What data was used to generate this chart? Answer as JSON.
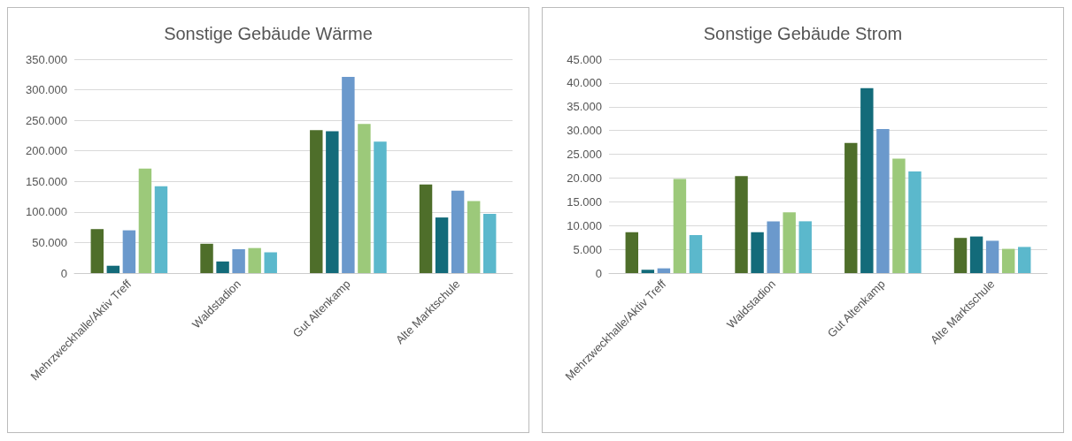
{
  "chart_data": [
    {
      "type": "bar",
      "title": "Sonstige Gebäude Wärme",
      "categories": [
        "Mehrzweckhalle/Aktiv Treff",
        "Waldstadion",
        "Gut Altenkamp",
        "Alte Marktschule"
      ],
      "series": [
        {
          "color": "#4e6e2a",
          "values": [
            72000,
            48000,
            234000,
            145000
          ]
        },
        {
          "color": "#136b7a",
          "values": [
            12000,
            19000,
            232000,
            91000
          ]
        },
        {
          "color": "#6b99cc",
          "values": [
            70000,
            39000,
            321000,
            135000
          ]
        },
        {
          "color": "#9cc97a",
          "values": [
            171000,
            41000,
            244000,
            118000
          ]
        },
        {
          "color": "#5bb8cc",
          "values": [
            142000,
            34000,
            215000,
            97000
          ]
        }
      ],
      "ylim": [
        0,
        350000
      ],
      "yticks": [
        0,
        {
          "value": 50000,
          "label": "50.000"
        },
        {
          "value": 100000,
          "label": "100.000"
        },
        {
          "value": 150000,
          "label": "150.000"
        },
        {
          "value": 200000,
          "label": "200.000"
        },
        {
          "value": 250000,
          "label": "250.000"
        },
        {
          "value": 300000,
          "label": "300.000"
        },
        {
          "value": 350000,
          "label": "350.000"
        }
      ],
      "grid": "y"
    },
    {
      "type": "bar",
      "title": "Sonstige Gebäude Strom",
      "categories": [
        "Mehrzweckhalle/Aktiv Treff",
        "Waldstadion",
        "Gut Altenkamp",
        "Alte Marktschule"
      ],
      "series": [
        {
          "color": "#4e6e2a",
          "values": [
            8600,
            20400,
            27400,
            7400
          ]
        },
        {
          "color": "#136b7a",
          "values": [
            700,
            8600,
            38900,
            7700
          ]
        },
        {
          "color": "#6b99cc",
          "values": [
            1000,
            10900,
            30300,
            6800
          ]
        },
        {
          "color": "#9cc97a",
          "values": [
            19800,
            12800,
            24100,
            5100
          ]
        },
        {
          "color": "#5bb8cc",
          "values": [
            8000,
            10900,
            21400,
            5500
          ]
        }
      ],
      "ylim": [
        0,
        45000
      ],
      "yticks": [
        0,
        {
          "value": 5000,
          "label": "5.000"
        },
        {
          "value": 10000,
          "label": "10.000"
        },
        {
          "value": 15000,
          "label": "15.000"
        },
        {
          "value": 20000,
          "label": "20.000"
        },
        {
          "value": 25000,
          "label": "25.000"
        },
        {
          "value": 30000,
          "label": "30.000"
        },
        {
          "value": 35000,
          "label": "35.000"
        },
        {
          "value": 40000,
          "label": "40.000"
        },
        {
          "value": 45000,
          "label": "45.000"
        }
      ],
      "grid": "y"
    }
  ]
}
